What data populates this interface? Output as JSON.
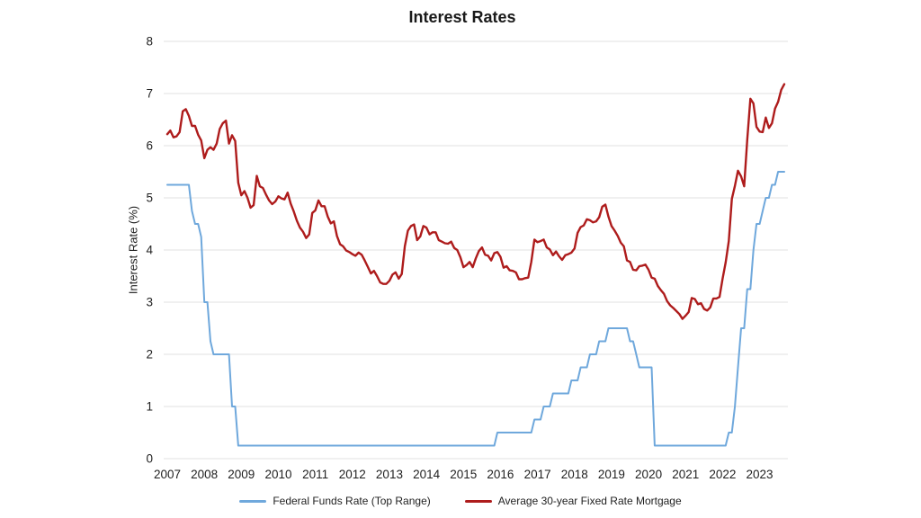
{
  "chart_data": {
    "type": "line",
    "title": "Interest Rates",
    "xlabel": "",
    "ylabel": "Interest Rate (%)",
    "ylim": [
      0,
      8
    ],
    "y_ticks": [
      0,
      1,
      2,
      3,
      4,
      5,
      6,
      7,
      8
    ],
    "x_ticks": [
      "2007",
      "2008",
      "2009",
      "2010",
      "2011",
      "2012",
      "2013",
      "2014",
      "2015",
      "2016",
      "2017",
      "2018",
      "2019",
      "2020",
      "2021",
      "2022",
      "2023"
    ],
    "x_interval": "monthly",
    "x_start": "2007-01",
    "x_end": "2023-09",
    "grid": "horizontal",
    "legend_position": "bottom",
    "gridline_color": "#e2e2e2",
    "series": [
      {
        "name": "Federal Funds Rate (Top Range)",
        "color": "#6fa8dc",
        "stroke_width": 2,
        "values": [
          5.25,
          5.25,
          5.25,
          5.25,
          5.25,
          5.25,
          5.25,
          5.25,
          4.75,
          4.5,
          4.5,
          4.25,
          3,
          3,
          2.25,
          2,
          2,
          2,
          2,
          2,
          2,
          1,
          1,
          0.25,
          0.25,
          0.25,
          0.25,
          0.25,
          0.25,
          0.25,
          0.25,
          0.25,
          0.25,
          0.25,
          0.25,
          0.25,
          0.25,
          0.25,
          0.25,
          0.25,
          0.25,
          0.25,
          0.25,
          0.25,
          0.25,
          0.25,
          0.25,
          0.25,
          0.25,
          0.25,
          0.25,
          0.25,
          0.25,
          0.25,
          0.25,
          0.25,
          0.25,
          0.25,
          0.25,
          0.25,
          0.25,
          0.25,
          0.25,
          0.25,
          0.25,
          0.25,
          0.25,
          0.25,
          0.25,
          0.25,
          0.25,
          0.25,
          0.25,
          0.25,
          0.25,
          0.25,
          0.25,
          0.25,
          0.25,
          0.25,
          0.25,
          0.25,
          0.25,
          0.25,
          0.25,
          0.25,
          0.25,
          0.25,
          0.25,
          0.25,
          0.25,
          0.25,
          0.25,
          0.25,
          0.25,
          0.25,
          0.25,
          0.25,
          0.25,
          0.25,
          0.25,
          0.25,
          0.25,
          0.25,
          0.25,
          0.25,
          0.25,
          0.5,
          0.5,
          0.5,
          0.5,
          0.5,
          0.5,
          0.5,
          0.5,
          0.5,
          0.5,
          0.5,
          0.5,
          0.75,
          0.75,
          0.75,
          1,
          1,
          1,
          1.25,
          1.25,
          1.25,
          1.25,
          1.25,
          1.25,
          1.5,
          1.5,
          1.5,
          1.75,
          1.75,
          1.75,
          2,
          2,
          2,
          2.25,
          2.25,
          2.25,
          2.5,
          2.5,
          2.5,
          2.5,
          2.5,
          2.5,
          2.5,
          2.25,
          2.25,
          2,
          1.75,
          1.75,
          1.75,
          1.75,
          1.75,
          0.25,
          0.25,
          0.25,
          0.25,
          0.25,
          0.25,
          0.25,
          0.25,
          0.25,
          0.25,
          0.25,
          0.25,
          0.25,
          0.25,
          0.25,
          0.25,
          0.25,
          0.25,
          0.25,
          0.25,
          0.25,
          0.25,
          0.25,
          0.25,
          0.5,
          0.5,
          1,
          1.75,
          2.5,
          2.5,
          3.25,
          3.25,
          4,
          4.5,
          4.5,
          4.75,
          5,
          5,
          5.25,
          5.25,
          5.5,
          5.5,
          5.5
        ]
      },
      {
        "name": "Average 30-year Fixed Rate Mortgage",
        "color": "#ae1c1c",
        "stroke_width": 2.4,
        "values": [
          6.22,
          6.29,
          6.16,
          6.18,
          6.26,
          6.66,
          6.7,
          6.57,
          6.38,
          6.38,
          6.21,
          6.1,
          5.76,
          5.92,
          5.97,
          5.92,
          6.04,
          6.32,
          6.43,
          6.48,
          6.04,
          6.2,
          6.09,
          5.29,
          5.05,
          5.13,
          5,
          4.81,
          4.86,
          5.42,
          5.22,
          5.19,
          5.06,
          4.95,
          4.88,
          4.93,
          5.03,
          4.99,
          4.97,
          5.1,
          4.89,
          4.74,
          4.56,
          4.43,
          4.35,
          4.23,
          4.3,
          4.71,
          4.76,
          4.95,
          4.84,
          4.84,
          4.64,
          4.51,
          4.55,
          4.27,
          4.11,
          4.07,
          3.99,
          3.96,
          3.92,
          3.89,
          3.95,
          3.91,
          3.8,
          3.68,
          3.55,
          3.6,
          3.5,
          3.38,
          3.35,
          3.35,
          3.41,
          3.53,
          3.57,
          3.45,
          3.54,
          4.07,
          4.37,
          4.46,
          4.49,
          4.19,
          4.26,
          4.46,
          4.43,
          4.3,
          4.34,
          4.34,
          4.19,
          4.16,
          4.13,
          4.12,
          4.16,
          4.04,
          4,
          3.86,
          3.67,
          3.71,
          3.77,
          3.67,
          3.84,
          3.98,
          4.05,
          3.91,
          3.89,
          3.8,
          3.94,
          3.96,
          3.87,
          3.66,
          3.69,
          3.61,
          3.6,
          3.57,
          3.44,
          3.44,
          3.46,
          3.47,
          3.77,
          4.2,
          4.15,
          4.17,
          4.2,
          4.05,
          4.01,
          3.9,
          3.97,
          3.88,
          3.81,
          3.9,
          3.92,
          3.95,
          4.03,
          4.33,
          4.44,
          4.47,
          4.59,
          4.57,
          4.53,
          4.55,
          4.63,
          4.83,
          4.87,
          4.64,
          4.46,
          4.37,
          4.27,
          4.14,
          4.07,
          3.8,
          3.77,
          3.62,
          3.61,
          3.69,
          3.7,
          3.72,
          3.62,
          3.47,
          3.45,
          3.31,
          3.23,
          3.16,
          3.02,
          2.94,
          2.89,
          2.83,
          2.77,
          2.68,
          2.74,
          2.81,
          3.08,
          3.06,
          2.96,
          2.98,
          2.87,
          2.84,
          2.9,
          3.07,
          3.07,
          3.1,
          3.45,
          3.76,
          4.17,
          4.98,
          5.23,
          5.52,
          5.41,
          5.22,
          6.11,
          6.9,
          6.81,
          6.36,
          6.27,
          6.26,
          6.54,
          6.34,
          6.43,
          6.71,
          6.84,
          7.07,
          7.18
        ]
      }
    ]
  }
}
